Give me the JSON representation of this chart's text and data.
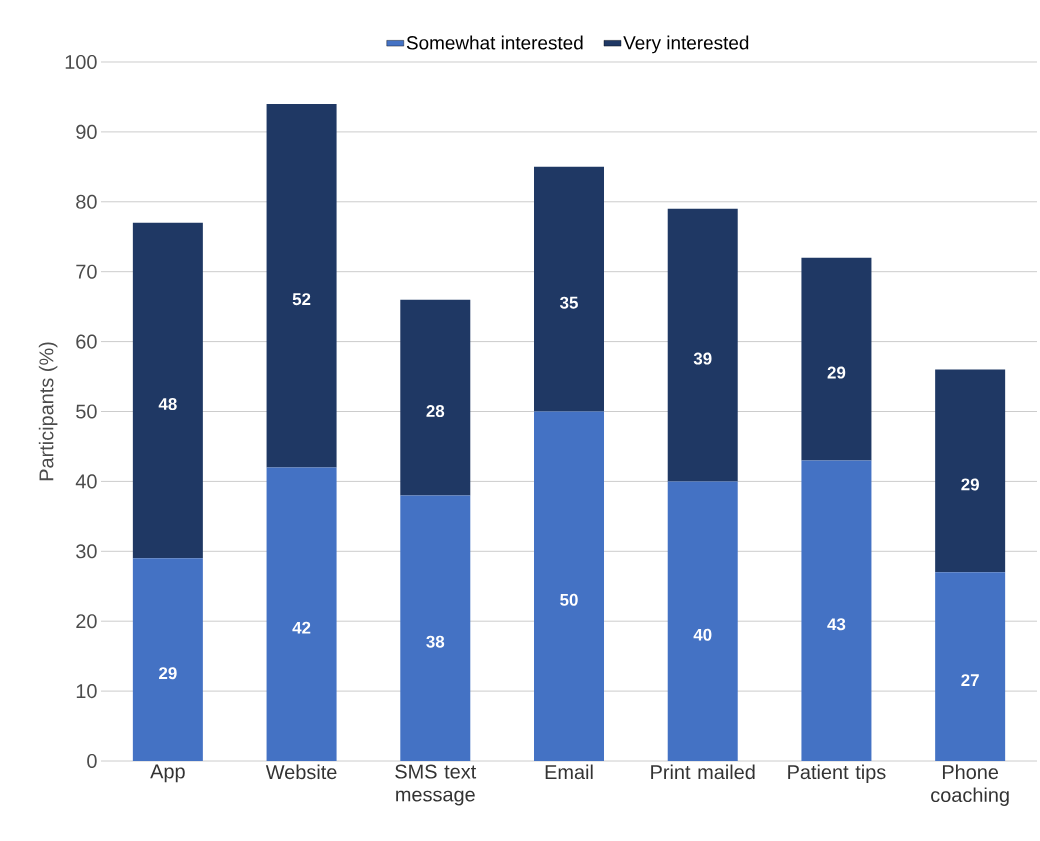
{
  "chart_data": {
    "type": "bar",
    "stacked": true,
    "ylabel": "Participants (%)",
    "categories": [
      "App",
      "Website",
      "SMS text message",
      "Email",
      "Print mailed",
      "Patient tips",
      "Phone coaching"
    ],
    "series": [
      {
        "name": "Somewhat interested",
        "color": "#4472c4",
        "values": [
          29,
          42,
          38,
          50,
          40,
          43,
          27
        ]
      },
      {
        "name": "Very interested",
        "color": "#1f3864",
        "values": [
          48,
          52,
          28,
          35,
          39,
          29,
          29
        ]
      }
    ],
    "ylim": [
      0,
      100
    ],
    "yticks": [
      0,
      10,
      20,
      30,
      40,
      50,
      60,
      70,
      80,
      90,
      100
    ],
    "grid": "y",
    "legend": "top",
    "data_labels": true
  }
}
